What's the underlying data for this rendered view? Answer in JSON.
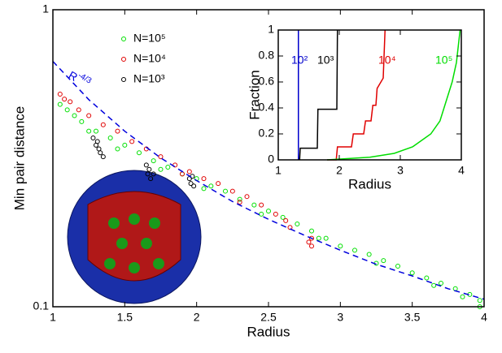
{
  "chart_data": [
    {
      "type": "scatter",
      "xlabel": "Radius",
      "ylabel": "Min pair distance",
      "log_y": true,
      "xlim": [
        1,
        4
      ],
      "ylim": [
        0.1,
        1
      ],
      "xticks": [
        1,
        1.5,
        2,
        2.5,
        3,
        3.5,
        4
      ],
      "yticks": [
        0.1,
        1
      ],
      "series": [
        {
          "name": "N=10⁵",
          "color": "#00e000",
          "x": [
            1.05,
            1.1,
            1.15,
            1.2,
            1.3,
            1.4,
            1.5,
            1.6,
            1.7,
            1.8,
            1.9,
            2.0,
            2.1,
            2.2,
            2.3,
            2.4,
            2.5,
            2.6,
            2.7,
            2.8,
            2.9,
            3.0,
            3.1,
            3.2,
            3.3,
            3.4,
            3.5,
            3.6,
            3.7,
            3.8,
            3.9,
            3.97,
            1.25,
            1.45,
            1.75,
            2.05,
            2.45,
            2.85,
            3.25,
            3.65,
            3.97,
            3.85
          ],
          "values": [
            0.48,
            0.46,
            0.44,
            0.42,
            0.39,
            0.37,
            0.35,
            0.33,
            0.31,
            0.295,
            0.28,
            0.27,
            0.255,
            0.245,
            0.23,
            0.22,
            0.21,
            0.2,
            0.19,
            0.18,
            0.17,
            0.16,
            0.155,
            0.15,
            0.143,
            0.137,
            0.13,
            0.125,
            0.12,
            0.115,
            0.11,
            0.105,
            0.39,
            0.34,
            0.29,
            0.25,
            0.205,
            0.17,
            0.14,
            0.118,
            0.1,
            0.108
          ]
        },
        {
          "name": "N=10⁴",
          "color": "#e00000",
          "x": [
            1.05,
            1.08,
            1.12,
            1.18,
            1.25,
            1.35,
            1.45,
            1.55,
            1.65,
            1.75,
            1.85,
            1.95,
            2.05,
            2.15,
            2.25,
            2.35,
            2.45,
            2.55,
            2.62,
            2.65,
            2.8,
            2.8,
            2.78,
            2.3,
            1.9
          ],
          "values": [
            0.52,
            0.5,
            0.49,
            0.46,
            0.44,
            0.41,
            0.39,
            0.36,
            0.34,
            0.32,
            0.3,
            0.285,
            0.27,
            0.26,
            0.245,
            0.235,
            0.22,
            0.205,
            0.195,
            0.185,
            0.17,
            0.16,
            0.165,
            0.225,
            0.28
          ]
        },
        {
          "name": "N=10³",
          "color": "#000000",
          "x": [
            1.28,
            1.3,
            1.32,
            1.31,
            1.33,
            1.35,
            1.65,
            1.66,
            1.67,
            1.68,
            1.7,
            1.95,
            1.96,
            1.97,
            1.98
          ],
          "values": [
            0.37,
            0.35,
            0.34,
            0.36,
            0.33,
            0.32,
            0.3,
            0.28,
            0.29,
            0.27,
            0.28,
            0.27,
            0.26,
            0.275,
            0.255
          ]
        }
      ],
      "fit_line": {
        "label": "R",
        "exponent": "-4/3",
        "color": "#0000dd",
        "x": [
          1,
          1.25,
          1.5,
          1.75,
          2,
          2.25,
          2.5,
          2.75,
          3,
          3.25,
          3.5,
          3.75,
          4
        ],
        "values": [
          0.67,
          0.498,
          0.39,
          0.317,
          0.266,
          0.226,
          0.197,
          0.174,
          0.155,
          0.139,
          0.127,
          0.115,
          0.106
        ]
      }
    },
    {
      "type": "line",
      "xlabel": "Radius",
      "ylabel": "Fraction",
      "xlim": [
        1,
        4
      ],
      "ylim": [
        0,
        1
      ],
      "xticks": [
        1,
        2,
        3,
        4
      ],
      "yticks": [
        0,
        0.2,
        0.4,
        0.6,
        0.8,
        1
      ],
      "series": [
        {
          "name": "10²",
          "color": "#0000cc",
          "x": [
            1.33,
            1.33
          ],
          "values": [
            0,
            1
          ]
        },
        {
          "name": "10³",
          "color": "#000000",
          "x": [
            1.35,
            1.36,
            1.64,
            1.65,
            1.96,
            1.97
          ],
          "values": [
            0,
            0.09,
            0.09,
            0.39,
            0.39,
            1
          ]
        },
        {
          "name": "10⁴",
          "color": "#e00000",
          "x": [
            1.8,
            1.95,
            1.97,
            2.2,
            2.23,
            2.4,
            2.43,
            2.52,
            2.55,
            2.6,
            2.62,
            2.72,
            2.75
          ],
          "values": [
            0,
            0,
            0.1,
            0.1,
            0.2,
            0.2,
            0.3,
            0.3,
            0.42,
            0.42,
            0.55,
            0.63,
            1
          ]
        },
        {
          "name": "10⁵",
          "color": "#00dd00",
          "x": [
            1.8,
            2.5,
            2.9,
            3.2,
            3.5,
            3.65,
            3.75,
            3.85,
            3.92,
            3.98
          ],
          "values": [
            0,
            0.02,
            0.05,
            0.1,
            0.2,
            0.3,
            0.45,
            0.6,
            0.75,
            1
          ]
        }
      ]
    }
  ]
}
